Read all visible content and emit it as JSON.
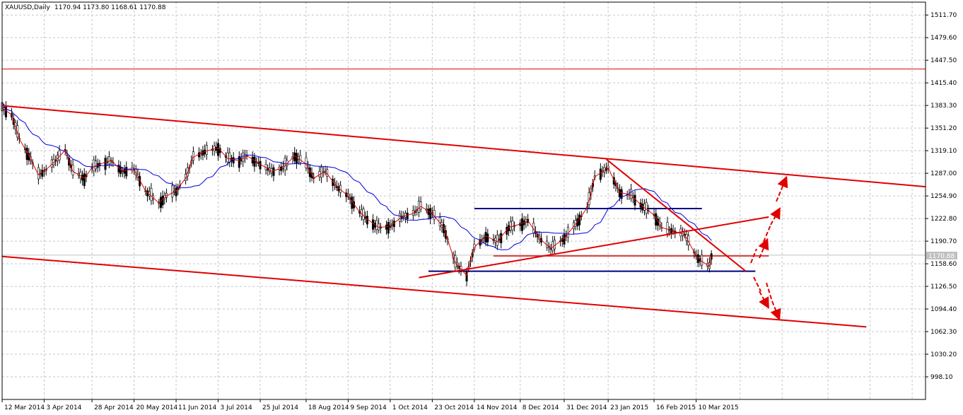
{
  "header": {
    "symbol": "XAUUSD,Daily",
    "ohlc": "1170.94 1173.80 1168.61 1170.88"
  },
  "price_marker": "1170.88",
  "colors": {
    "grid": "#c6c6c6",
    "ma_fast": "#e00000",
    "ma_slow": "#0000e0",
    "trend": "#e00000",
    "range": "#000080",
    "bid": "#c0c0c0",
    "candle": "#000000"
  },
  "chart_data": {
    "type": "line",
    "title": "",
    "xlabel": "",
    "ylabel": "",
    "ylim": [
      966,
      1530
    ],
    "yticks": [
      998.1,
      1030.2,
      1062.3,
      1094.4,
      1126.5,
      1158.6,
      1190.7,
      1222.8,
      1254.9,
      1287.0,
      1319.1,
      1351.2,
      1383.3,
      1415.4,
      1447.5,
      1479.6,
      1511.7
    ],
    "ytick_labels": [
      "998.10",
      "1030.20",
      "1062.30",
      "1094.40",
      "1126.50",
      "1158.60",
      "1190.70",
      "1222.80",
      "1254.90",
      "1287.00",
      "1319.10",
      "1351.20",
      "1383.30",
      "1415.40",
      "1447.50",
      "1479.60",
      "1511.70"
    ],
    "x_date_labels": [
      "12 Mar 2014",
      "3 Apr 2014",
      "28 Apr 2014",
      "20 May 2014",
      "11 Jun 2014",
      "3 Jul 2014",
      "25 Jul 2014",
      "18 Aug 2014",
      "9 Sep 2014",
      "1 Oct 2014",
      "23 Oct 2014",
      "14 Nov 2014",
      "8 Dec 2014",
      "31 Dec 2014",
      "23 Jan 2015",
      "16 Feb 2015",
      "10 Mar 2015"
    ],
    "x_range": [
      "2014-03-12",
      "2015-07-08"
    ],
    "price_series": {
      "name": "",
      "x": [
        "2014-03-12",
        "2014-03-17",
        "2014-03-21",
        "2014-03-26",
        "2014-03-31",
        "2014-04-03",
        "2014-04-08",
        "2014-04-14",
        "2014-04-18",
        "2014-04-24",
        "2014-04-28",
        "2014-05-02",
        "2014-05-08",
        "2014-05-14",
        "2014-05-20",
        "2014-05-26",
        "2014-06-02",
        "2014-06-06",
        "2014-06-11",
        "2014-06-16",
        "2014-06-20",
        "2014-06-26",
        "2014-07-03",
        "2014-07-08",
        "2014-07-14",
        "2014-07-18",
        "2014-07-25",
        "2014-07-31",
        "2014-08-06",
        "2014-08-12",
        "2014-08-18",
        "2014-08-22",
        "2014-08-28",
        "2014-09-03",
        "2014-09-09",
        "2014-09-15",
        "2014-09-19",
        "2014-09-25",
        "2014-10-01",
        "2014-10-07",
        "2014-10-13",
        "2014-10-17",
        "2014-10-23",
        "2014-10-29",
        "2014-11-04",
        "2014-11-10",
        "2014-11-14",
        "2014-11-20",
        "2014-11-26",
        "2014-12-02",
        "2014-12-08",
        "2014-12-12",
        "2014-12-18",
        "2014-12-24",
        "2014-12-31",
        "2015-01-06",
        "2015-01-12",
        "2015-01-16",
        "2015-01-23",
        "2015-01-29",
        "2015-02-04",
        "2015-02-10",
        "2015-02-16",
        "2015-02-20",
        "2015-02-26",
        "2015-03-04",
        "2015-03-10",
        "2015-03-13",
        "2015-03-17",
        "2015-03-18"
      ],
      "values": [
        1380,
        1370,
        1336,
        1312,
        1285,
        1290,
        1302,
        1320,
        1290,
        1280,
        1295,
        1300,
        1305,
        1290,
        1293,
        1262,
        1245,
        1255,
        1262,
        1280,
        1310,
        1318,
        1323,
        1308,
        1305,
        1312,
        1300,
        1290,
        1295,
        1312,
        1300,
        1280,
        1290,
        1268,
        1255,
        1232,
        1222,
        1210,
        1212,
        1225,
        1230,
        1240,
        1230,
        1210,
        1160,
        1142,
        1182,
        1198,
        1190,
        1210,
        1215,
        1220,
        1195,
        1180,
        1195,
        1215,
        1238,
        1282,
        1295,
        1260,
        1256,
        1240,
        1228,
        1210,
        1205,
        1200,
        1170,
        1162,
        1155,
        1170
      ]
    },
    "annotations": [
      {
        "kind": "channel-upper",
        "from": [
          "2014-03-12",
          1383
        ],
        "to": [
          "2015-07-08",
          1268
        ]
      },
      {
        "kind": "channel-lower",
        "from": [
          "2014-03-12",
          1169
        ],
        "to": [
          "2015-06-07",
          1069
        ]
      },
      {
        "kind": "support-trend",
        "from": [
          "2014-10-16",
          1139
        ],
        "to": [
          "2015-04-17",
          1225
        ]
      },
      {
        "kind": "resistance-trend",
        "from": [
          "2015-01-22",
          1307
        ],
        "to": [
          "2015-04-05",
          1148
        ]
      },
      {
        "kind": "horizontal",
        "level": 1435
      },
      {
        "kind": "horizontal",
        "from_date": "2014-11-24",
        "to_date": "2015-04-17",
        "level": 1170
      },
      {
        "kind": "range-top",
        "from_date": "2014-11-14",
        "to_date": "2015-03-13",
        "level": 1237
      },
      {
        "kind": "range-bottom",
        "from_date": "2014-10-21",
        "to_date": "2015-04-10",
        "level": 1148
      }
    ]
  }
}
